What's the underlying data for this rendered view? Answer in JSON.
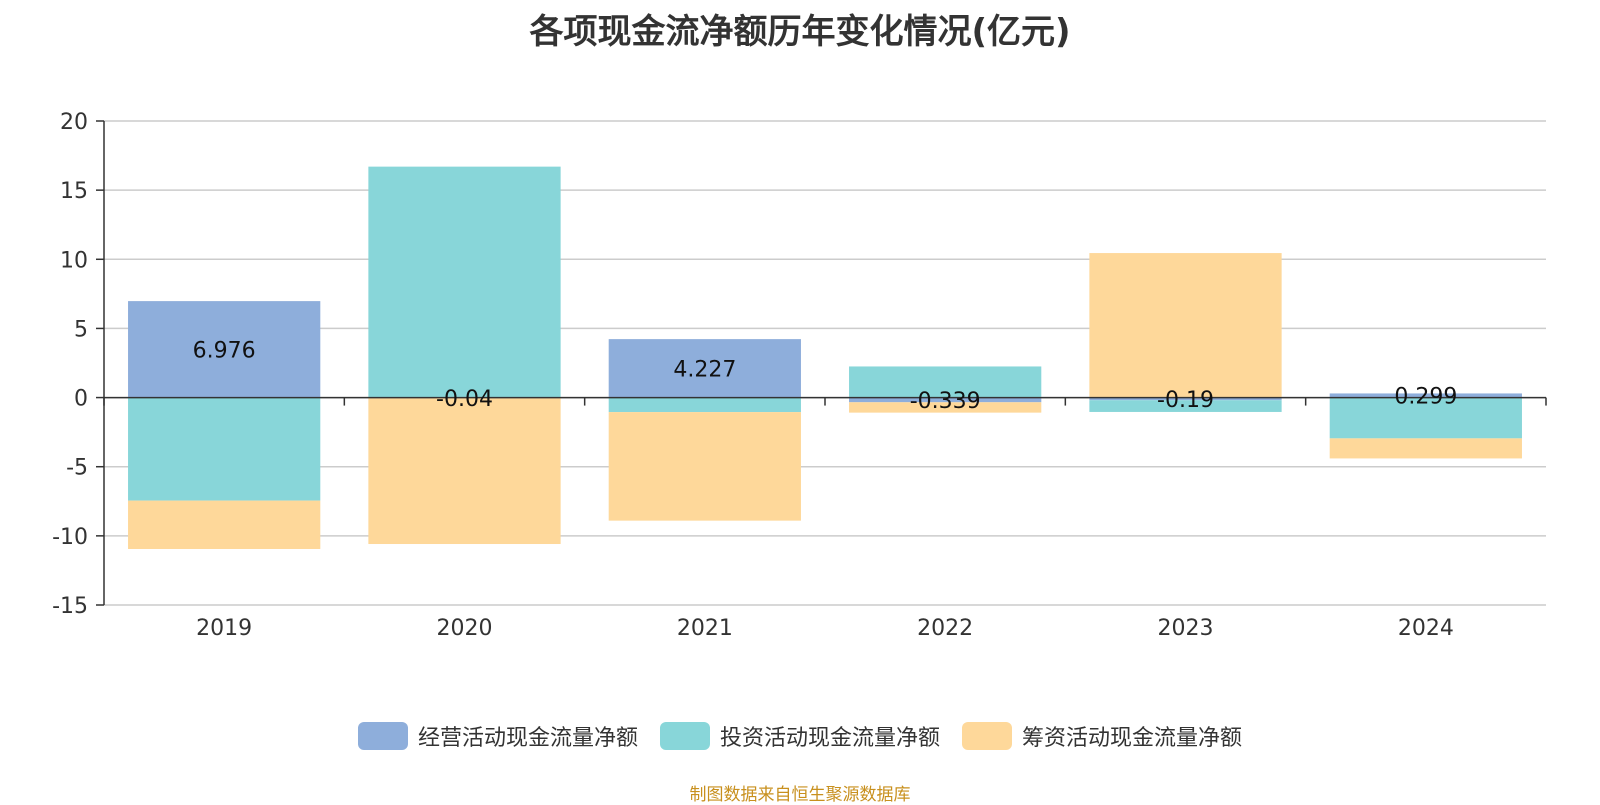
{
  "chart_data": {
    "type": "bar",
    "stacked": true,
    "title": "各项现金流净额历年变化情况(亿元)",
    "categories": [
      "2019",
      "2020",
      "2021",
      "2022",
      "2023",
      "2024"
    ],
    "ylim": [
      -15,
      20
    ],
    "yticks": [
      "20",
      "15",
      "10",
      "5",
      "0",
      "-5",
      "-10",
      "-15"
    ],
    "grid": true,
    "legend_position": "bottom-center",
    "series": [
      {
        "name": "经营活动现金流量净额",
        "color": "#8eaedb",
        "values": [
          6.976,
          -0.04,
          4.227,
          -0.339,
          -0.19,
          0.299
        ],
        "labels": [
          "6.976",
          "-0.04",
          "4.227",
          "-0.339",
          "-0.19",
          "0.299"
        ]
      },
      {
        "name": "投资活动现金流量净额",
        "color": "#88d6d9",
        "values": [
          -7.45,
          16.7,
          -1.05,
          2.25,
          -0.85,
          -2.95
        ],
        "labels": [
          "",
          "",
          "",
          "",
          "",
          ""
        ]
      },
      {
        "name": "筹资活动现金流量净额",
        "color": "#fed89a",
        "values": [
          -3.5,
          -10.55,
          -7.85,
          -0.75,
          10.45,
          -1.45
        ],
        "labels": [
          "",
          "",
          "",
          "",
          "",
          ""
        ]
      }
    ]
  },
  "source_note": "制图数据来自恒生聚源数据库"
}
